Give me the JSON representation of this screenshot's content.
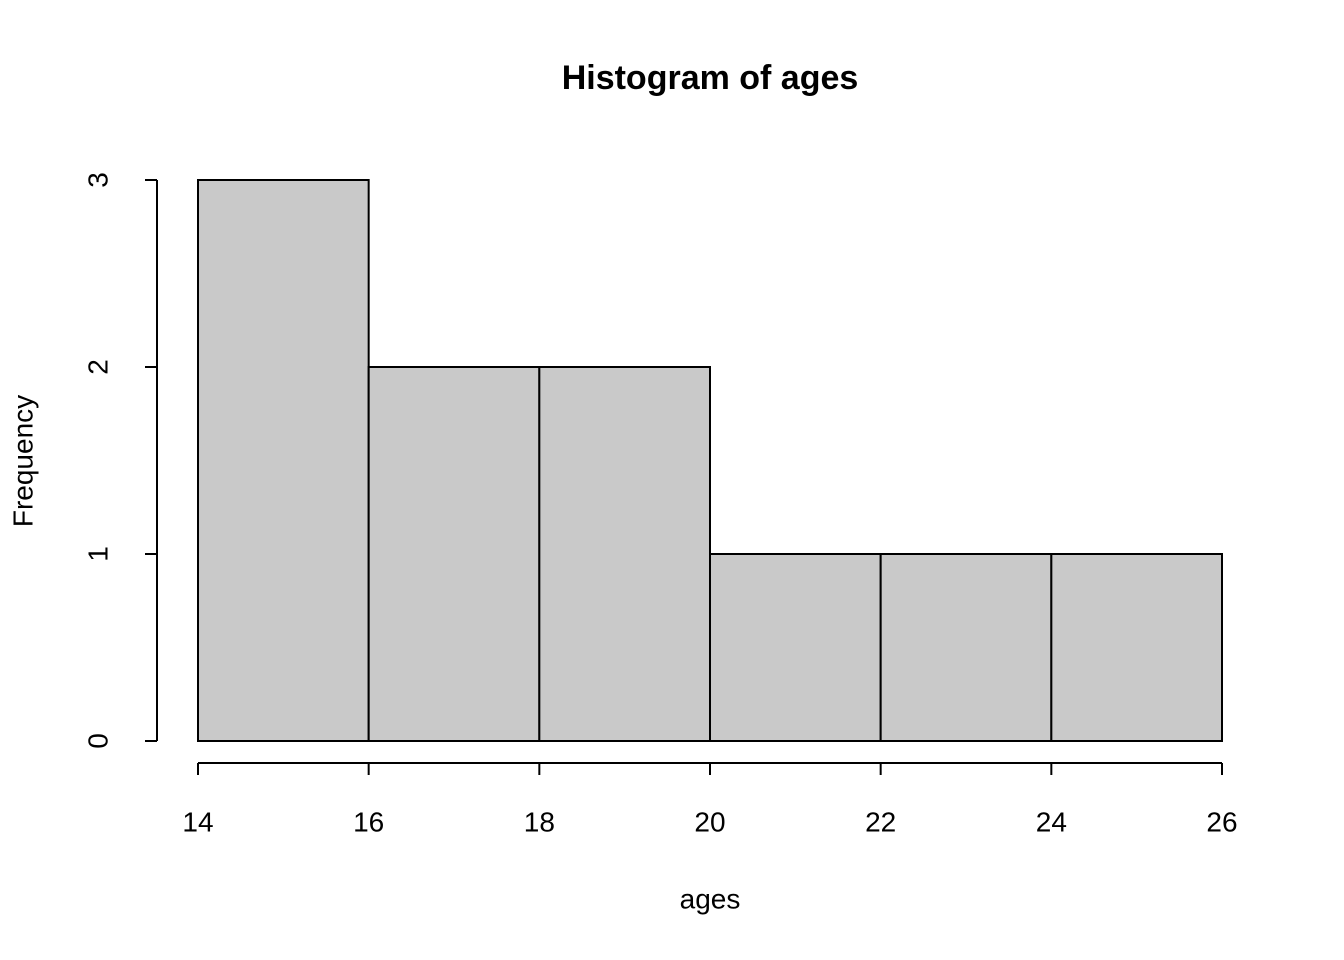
{
  "chart_data": {
    "type": "histogram",
    "title": "Histogram of ages",
    "x_label": "ages",
    "y_label": "Frequency",
    "bins": [
      14,
      16,
      18,
      20,
      22,
      24,
      26
    ],
    "values": [
      3,
      2,
      2,
      1,
      1,
      1
    ],
    "color": "#c9c9c9",
    "xlim": [
      14,
      26
    ],
    "ylim": [
      0,
      3
    ],
    "xticks": [
      14,
      16,
      18,
      20,
      22,
      24,
      26
    ],
    "yticks": [
      0,
      1,
      2,
      3
    ]
  }
}
